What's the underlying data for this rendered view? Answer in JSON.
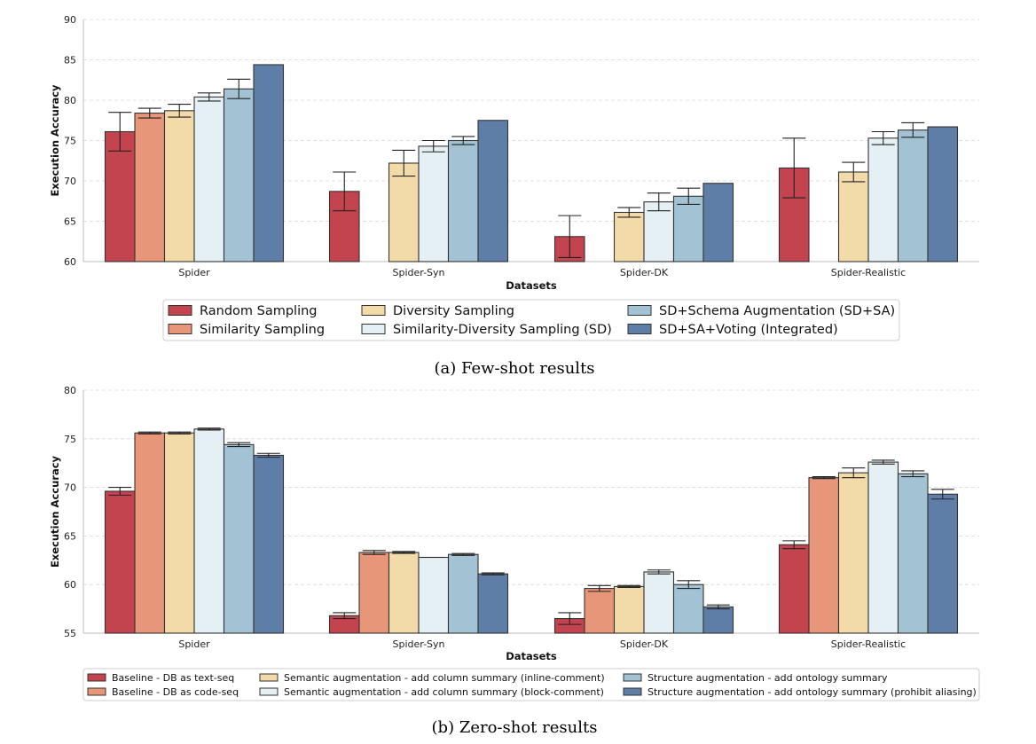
{
  "chart_data": [
    {
      "type": "bar",
      "caption": "(a) Few-shot results",
      "title": "",
      "xlabel": "Datasets",
      "ylabel": "Execution Accuracy",
      "ylim": [
        60,
        90
      ],
      "yticks": [
        60,
        65,
        70,
        75,
        80,
        85,
        90
      ],
      "grid": true,
      "categories": [
        "Spider",
        "Spider-Syn",
        "Spider-DK",
        "Spider-Realistic"
      ],
      "series": [
        {
          "name": "Random Sampling",
          "color": "#c3444f",
          "values": [
            76.1,
            68.7,
            63.1,
            71.6
          ],
          "err": [
            2.4,
            2.4,
            2.6,
            3.7
          ]
        },
        {
          "name": "Similarity Sampling",
          "color": "#e8967a",
          "values": [
            78.4,
            null,
            null,
            null
          ],
          "err": [
            0.6,
            null,
            null,
            null
          ]
        },
        {
          "name": "Diversity Sampling",
          "color": "#f2dba8",
          "values": [
            78.7,
            72.2,
            66.1,
            71.1
          ],
          "err": [
            0.8,
            1.6,
            0.6,
            1.2
          ]
        },
        {
          "name": "Similarity-Diversity Sampling (SD)",
          "color": "#e4f0f4",
          "values": [
            80.4,
            74.3,
            67.4,
            75.3
          ],
          "err": [
            0.5,
            0.7,
            1.1,
            0.8
          ]
        },
        {
          "name": "SD+Schema Augmentation (SD+SA)",
          "color": "#a3c2d4",
          "values": [
            81.4,
            75.0,
            68.1,
            76.3
          ],
          "err": [
            1.2,
            0.5,
            1.0,
            0.9
          ]
        },
        {
          "name": "SD+SA+Voting (Integrated)",
          "color": "#5f7ea7",
          "values": [
            84.4,
            77.5,
            69.7,
            76.7
          ],
          "err": [
            null,
            null,
            null,
            null
          ]
        }
      ]
    },
    {
      "type": "bar",
      "caption": "(b) Zero-shot results",
      "title": "",
      "xlabel": "Datasets",
      "ylabel": "Execution Accuracy",
      "ylim": [
        55,
        80
      ],
      "yticks": [
        55,
        60,
        65,
        70,
        75,
        80
      ],
      "grid": true,
      "categories": [
        "Spider",
        "Spider-Syn",
        "Spider-DK",
        "Spider-Realistic"
      ],
      "series": [
        {
          "name": "Baseline - DB as text-seq",
          "color": "#c3444f",
          "values": [
            69.6,
            56.8,
            56.5,
            64.1
          ],
          "err": [
            0.4,
            0.3,
            0.6,
            0.4
          ]
        },
        {
          "name": "Baseline - DB as code-seq",
          "color": "#e8967a",
          "values": [
            75.6,
            63.3,
            59.6,
            71.0
          ],
          "err": [
            0.1,
            0.2,
            0.3,
            0.1
          ]
        },
        {
          "name": "Semantic augmentation - add column summary (inline-comment)",
          "color": "#f2dba8",
          "values": [
            75.6,
            63.3,
            59.8,
            71.5
          ],
          "err": [
            0.1,
            0.1,
            0.1,
            0.5
          ]
        },
        {
          "name": "Semantic augmentation - add column summary (block-comment)",
          "color": "#e4f0f4",
          "values": [
            76.0,
            62.8,
            61.3,
            72.6
          ],
          "err": [
            0.1,
            0.0,
            0.2,
            0.2
          ]
        },
        {
          "name": "Structure augmentation - add ontology summary",
          "color": "#a3c2d4",
          "values": [
            74.4,
            63.1,
            60.0,
            71.4
          ],
          "err": [
            0.2,
            0.1,
            0.4,
            0.3
          ]
        },
        {
          "name": "Structure augmentation - add ontology summary (prohibit aliasing)",
          "color": "#5f7ea7",
          "values": [
            73.3,
            61.1,
            57.7,
            69.3
          ],
          "err": [
            0.2,
            0.1,
            0.2,
            0.5
          ]
        }
      ]
    }
  ]
}
